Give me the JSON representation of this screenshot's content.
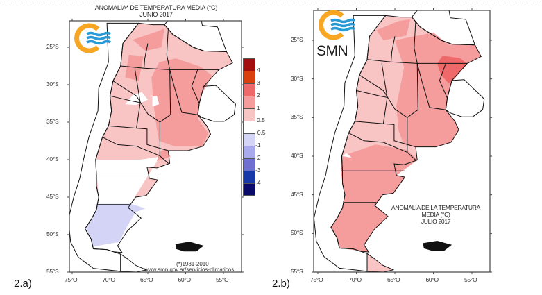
{
  "figure_a": {
    "panel_label": "2.a)",
    "title_line1": "ANOMALIA* DE TEMPERATURA MEDIA (°C)",
    "title_line2": "JUNIO 2017",
    "credit_line1": "(*)1981-2010",
    "credit_line2": "www.smn.gov.ar/servicios-climaticos",
    "logo": "smn-logo-icon"
  },
  "figure_b": {
    "panel_label": "2.b)",
    "title_line1": "ANOMALÍA DE LA TEMPERATURA",
    "title_line2": "MEDIA (°C)",
    "title_line3": "JULIO 2017",
    "logo": "smn-logo-icon",
    "logo_text": "SMN"
  },
  "axes": {
    "lat_ticks": [
      "25°S",
      "30°S",
      "35°S",
      "40°S",
      "45°S",
      "50°S",
      "55°S"
    ],
    "lon_ticks": [
      "75°O",
      "70°O",
      "65°O",
      "60°O",
      "55°O"
    ],
    "lat_range": [
      -55,
      -22
    ],
    "lon_range": [
      -76,
      -53
    ]
  },
  "legend": {
    "unit": "°C",
    "bins": [
      {
        "color": "#a30e10",
        "label": "4"
      },
      {
        "color": "#d9400e",
        "label": "3"
      },
      {
        "color": "#f0696a",
        "label": "2"
      },
      {
        "color": "#f59c9c",
        "label": "1"
      },
      {
        "color": "#f8c4c4",
        "label": "0.5"
      },
      {
        "color": "#ffffff",
        "label": "-0.5"
      },
      {
        "color": "#d4d4f7",
        "label": "-1"
      },
      {
        "color": "#a9a9ee",
        "label": "-2"
      },
      {
        "color": "#6f6fd1",
        "label": "-3"
      },
      {
        "color": "#1638a8",
        "label": "-4"
      },
      {
        "color": "#0a0a6a",
        "label": ""
      }
    ]
  },
  "colors": {
    "logo_orange": "#f6a623",
    "logo_blue": "#2a9ad6",
    "border": "#111111"
  }
}
